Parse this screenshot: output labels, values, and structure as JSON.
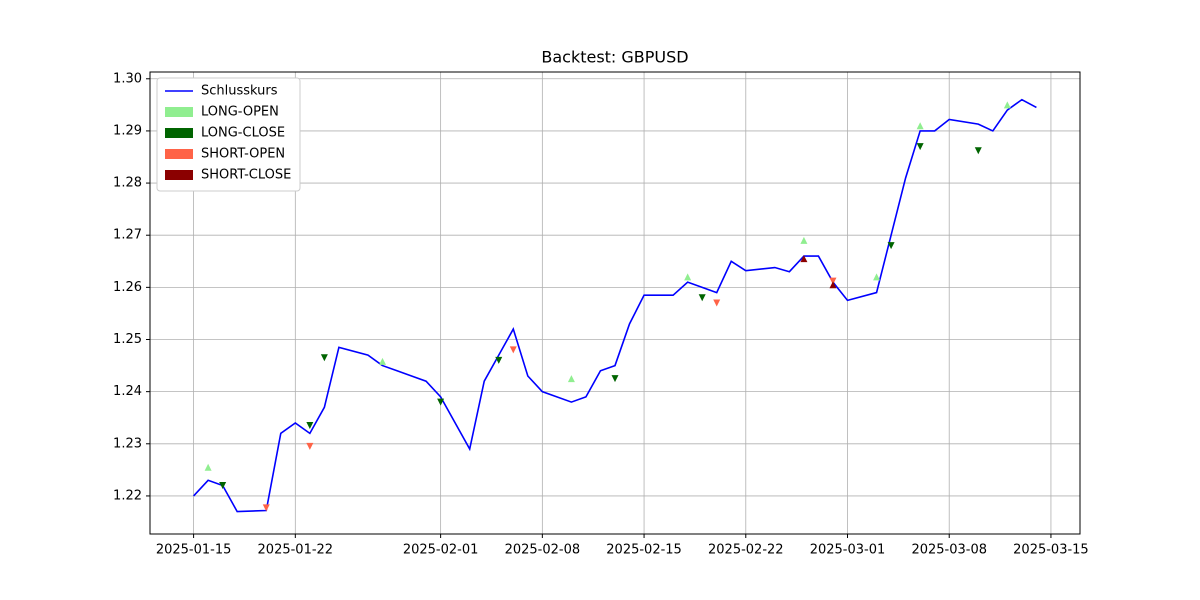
{
  "chart_data": {
    "type": "line",
    "title": "Backtest: GBPUSD",
    "x": [
      "2025-01-15",
      "2025-01-16",
      "2025-01-17",
      "2025-01-18",
      "2025-01-20",
      "2025-01-21",
      "2025-01-22",
      "2025-01-23",
      "2025-01-24",
      "2025-01-25",
      "2025-01-27",
      "2025-01-28",
      "2025-01-29",
      "2025-01-30",
      "2025-01-31",
      "2025-02-01",
      "2025-02-03",
      "2025-02-04",
      "2025-02-05",
      "2025-02-06",
      "2025-02-07",
      "2025-02-08",
      "2025-02-10",
      "2025-02-11",
      "2025-02-12",
      "2025-02-13",
      "2025-02-14",
      "2025-02-15",
      "2025-02-17",
      "2025-02-18",
      "2025-02-19",
      "2025-02-20",
      "2025-02-21",
      "2025-02-22",
      "2025-02-24",
      "2025-02-25",
      "2025-02-26",
      "2025-02-27",
      "2025-02-28",
      "2025-03-01",
      "2025-03-03",
      "2025-03-04",
      "2025-03-05",
      "2025-03-06",
      "2025-03-07",
      "2025-03-08",
      "2025-03-10",
      "2025-03-11",
      "2025-03-12",
      "2025-03-13",
      "2025-03-14"
    ],
    "series": [
      {
        "name": "Schlusskurs",
        "color": "#0000ff",
        "values": [
          1.22,
          1.223,
          1.222,
          1.217,
          1.2172,
          1.232,
          1.234,
          1.232,
          1.237,
          1.2485,
          1.247,
          1.245,
          1.244,
          1.243,
          1.242,
          1.239,
          1.229,
          1.242,
          1.247,
          1.252,
          1.243,
          1.24,
          1.238,
          1.239,
          1.244,
          1.245,
          1.253,
          1.2585,
          1.2585,
          1.261,
          1.26,
          1.259,
          1.265,
          1.2632,
          1.2638,
          1.263,
          1.266,
          1.266,
          1.261,
          1.2575,
          1.259,
          1.27,
          1.281,
          1.29,
          1.29,
          1.2922,
          1.2913,
          1.29,
          1.294,
          1.296,
          1.2945
        ]
      }
    ],
    "markers": [
      {
        "name": "LONG-OPEN",
        "color": "#90ee90",
        "marker": "up",
        "x": [
          "2025-01-16",
          "2025-01-28",
          "2025-02-10",
          "2025-02-18",
          "2025-02-26",
          "2025-03-03",
          "2025-03-06",
          "2025-03-12"
        ],
        "values": [
          1.2255,
          1.2458,
          1.2425,
          1.262,
          1.269,
          1.262,
          1.291,
          1.295
        ]
      },
      {
        "name": "LONG-CLOSE",
        "color": "#006400",
        "marker": "down",
        "x": [
          "2025-01-17",
          "2025-01-23",
          "2025-01-24",
          "2025-02-01",
          "2025-02-05",
          "2025-02-13",
          "2025-02-19",
          "2025-03-04",
          "2025-03-06",
          "2025-03-10"
        ],
        "values": [
          1.222,
          1.2335,
          1.2465,
          1.238,
          1.246,
          1.2425,
          1.258,
          1.268,
          1.287,
          1.2862
        ]
      },
      {
        "name": "SHORT-OPEN",
        "color": "#ff6347",
        "marker": "down",
        "x": [
          "2025-01-20",
          "2025-01-23",
          "2025-02-06",
          "2025-02-20",
          "2025-02-28"
        ],
        "values": [
          1.2177,
          1.2295,
          1.248,
          1.257,
          1.2612
        ]
      },
      {
        "name": "SHORT-CLOSE",
        "color": "#8b0000",
        "marker": "up",
        "x": [
          "2025-02-26",
          "2025-02-28"
        ],
        "values": [
          1.2655,
          1.2605
        ]
      }
    ],
    "xlim": [
      "2025-01-12",
      "2025-03-17"
    ],
    "xticks": [
      "2025-01-15",
      "2025-01-22",
      "2025-02-01",
      "2025-02-08",
      "2025-02-15",
      "2025-02-22",
      "2025-03-01",
      "2025-03-08",
      "2025-03-15"
    ],
    "ylim": [
      1.2127,
      1.3013
    ],
    "yticks": [
      {
        "value": 1.22,
        "label": "1.22"
      },
      {
        "value": 1.23,
        "label": "1.23"
      },
      {
        "value": 1.24,
        "label": "1.24"
      },
      {
        "value": 1.25,
        "label": "1.25"
      },
      {
        "value": 1.26,
        "label": "1.26"
      },
      {
        "value": 1.27,
        "label": "1.27"
      },
      {
        "value": 1.28,
        "label": "1.28"
      },
      {
        "value": 1.29,
        "label": "1.29"
      },
      {
        "value": 1.3,
        "label": "1.30"
      }
    ],
    "grid": true,
    "legend": "upper-left"
  }
}
